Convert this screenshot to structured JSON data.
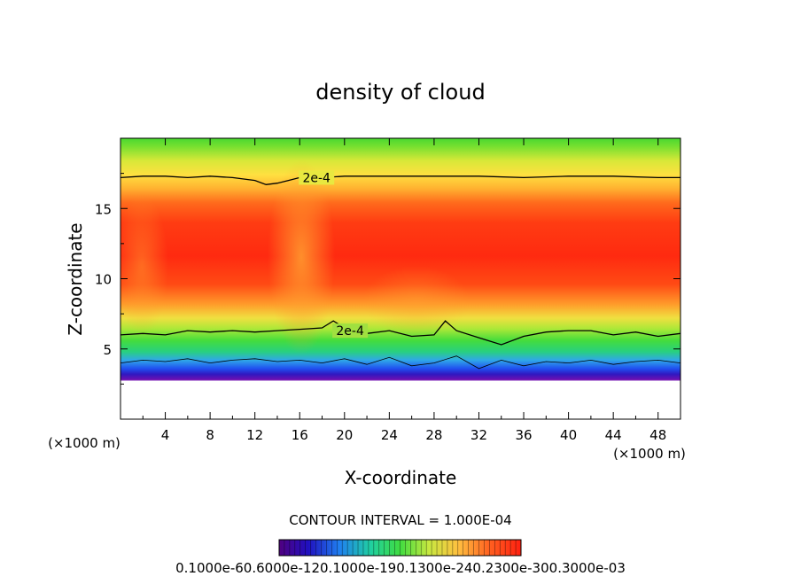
{
  "chart_data": {
    "type": "heatmap",
    "title": "density of cloud",
    "xlabel": "X-coordinate",
    "ylabel": "Z-coordinate",
    "x_unit": "(×1000 m)",
    "y_unit": "(×1000 m)",
    "xlim": [
      0,
      50
    ],
    "ylim": [
      0,
      20
    ],
    "x_ticks": [
      4,
      8,
      12,
      16,
      20,
      24,
      28,
      32,
      36,
      40,
      44,
      48
    ],
    "y_ticks": [
      5,
      10,
      15
    ],
    "contour_interval_text": "CONTOUR INTERVAL = 1.000E-04",
    "contour_labels": [
      {
        "text": "2e-4",
        "x": 17.5,
        "z": 17.2
      },
      {
        "text": "2e-4",
        "x": 20.5,
        "z": 6.3
      }
    ],
    "contours": {
      "upper_2e-4": {
        "x": [
          0,
          2,
          4,
          6,
          8,
          10,
          12,
          13,
          14,
          15,
          16,
          18,
          20,
          24,
          28,
          32,
          36,
          40,
          44,
          48,
          50
        ],
        "z": [
          17.2,
          17.3,
          17.3,
          17.2,
          17.3,
          17.2,
          17.0,
          16.7,
          16.8,
          17.0,
          17.2,
          17.2,
          17.3,
          17.3,
          17.3,
          17.3,
          17.2,
          17.3,
          17.3,
          17.2,
          17.2
        ]
      },
      "lower_2e-4": {
        "x": [
          0,
          2,
          4,
          6,
          8,
          10,
          12,
          14,
          16,
          18,
          19,
          20,
          22,
          24,
          26,
          28,
          29,
          30,
          32,
          34,
          36,
          38,
          40,
          42,
          44,
          46,
          48,
          50
        ],
        "z": [
          6.0,
          6.1,
          6.0,
          6.3,
          6.2,
          6.3,
          6.2,
          6.3,
          6.4,
          6.5,
          7.0,
          6.5,
          6.1,
          6.3,
          5.9,
          6.0,
          7.0,
          6.3,
          5.8,
          5.3,
          5.9,
          6.2,
          6.3,
          6.3,
          6.0,
          6.2,
          5.9,
          6.1
        ]
      },
      "cloud_base": {
        "x": [
          0,
          2,
          4,
          6,
          8,
          10,
          12,
          14,
          16,
          18,
          20,
          22,
          24,
          26,
          28,
          30,
          32,
          34,
          36,
          38,
          40,
          42,
          44,
          46,
          48,
          50
        ],
        "z": [
          4.0,
          4.2,
          4.1,
          4.3,
          4.0,
          4.2,
          4.3,
          4.1,
          4.2,
          4.0,
          4.3,
          3.9,
          4.4,
          3.8,
          4.0,
          4.5,
          3.6,
          4.2,
          3.8,
          4.1,
          4.0,
          4.2,
          3.9,
          4.1,
          4.2,
          4.0
        ]
      }
    },
    "colorbar_tick_text": "0.1000e-60.6000e-120.1000e-190.1300e-240.2300e-300.3000e-03"
  }
}
